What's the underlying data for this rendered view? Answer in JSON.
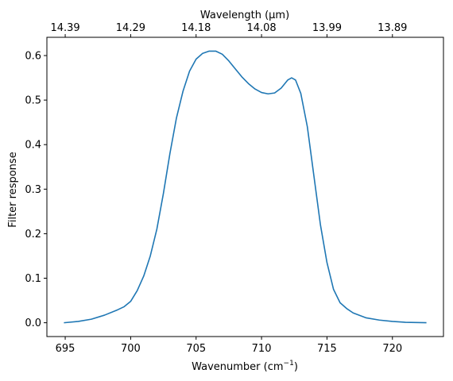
{
  "chart_data": {
    "type": "line",
    "xlabel": "Wavenumber (cm",
    "xlabel_superscript": "−1",
    "xlabel_suffix": ")",
    "ylabel": "Filter response",
    "top_axis_label": "Wavelength (μm)",
    "xlim": [
      693.6,
      723.9
    ],
    "ylim": [
      -0.031,
      0.641
    ],
    "x_ticks": [
      {
        "value": 695,
        "label": "695"
      },
      {
        "value": 700,
        "label": "700"
      },
      {
        "value": 705,
        "label": "705"
      },
      {
        "value": 710,
        "label": "710"
      },
      {
        "value": 715,
        "label": "715"
      },
      {
        "value": 720,
        "label": "720"
      }
    ],
    "y_ticks": [
      {
        "value": 0.0,
        "label": "0.0"
      },
      {
        "value": 0.1,
        "label": "0.1"
      },
      {
        "value": 0.2,
        "label": "0.2"
      },
      {
        "value": 0.3,
        "label": "0.3"
      },
      {
        "value": 0.4,
        "label": "0.4"
      },
      {
        "value": 0.5,
        "label": "0.5"
      },
      {
        "value": 0.6,
        "label": "0.6"
      }
    ],
    "top_ticks": [
      {
        "value": 695,
        "label": "14.39"
      },
      {
        "value": 700,
        "label": "14.29"
      },
      {
        "value": 705,
        "label": "14.18"
      },
      {
        "value": 710,
        "label": "14.08"
      },
      {
        "value": 715,
        "label": "13.99"
      },
      {
        "value": 720,
        "label": "13.89"
      }
    ],
    "grid": false,
    "series": [
      {
        "color": "#1f77b4",
        "x": [
          694.9,
          696.0,
          697.0,
          698.0,
          699.0,
          699.5,
          700.0,
          700.5,
          701.0,
          701.5,
          702.0,
          702.5,
          703.0,
          703.5,
          704.0,
          704.5,
          705.0,
          705.5,
          706.0,
          706.5,
          707.0,
          707.5,
          708.0,
          708.5,
          709.0,
          709.5,
          710.0,
          710.5,
          711.0,
          711.5,
          712.0,
          712.3,
          712.6,
          713.0,
          713.5,
          714.0,
          714.5,
          715.0,
          715.5,
          716.0,
          716.5,
          717.0,
          718.0,
          719.0,
          720.0,
          721.0,
          722.6
        ],
        "y": [
          0.0,
          0.003,
          0.008,
          0.017,
          0.029,
          0.036,
          0.048,
          0.072,
          0.105,
          0.15,
          0.21,
          0.29,
          0.38,
          0.46,
          0.52,
          0.565,
          0.592,
          0.605,
          0.61,
          0.61,
          0.603,
          0.588,
          0.57,
          0.552,
          0.537,
          0.525,
          0.517,
          0.514,
          0.516,
          0.527,
          0.545,
          0.55,
          0.545,
          0.515,
          0.44,
          0.33,
          0.22,
          0.135,
          0.075,
          0.045,
          0.032,
          0.022,
          0.011,
          0.006,
          0.003,
          0.001,
          0.0
        ]
      }
    ]
  }
}
